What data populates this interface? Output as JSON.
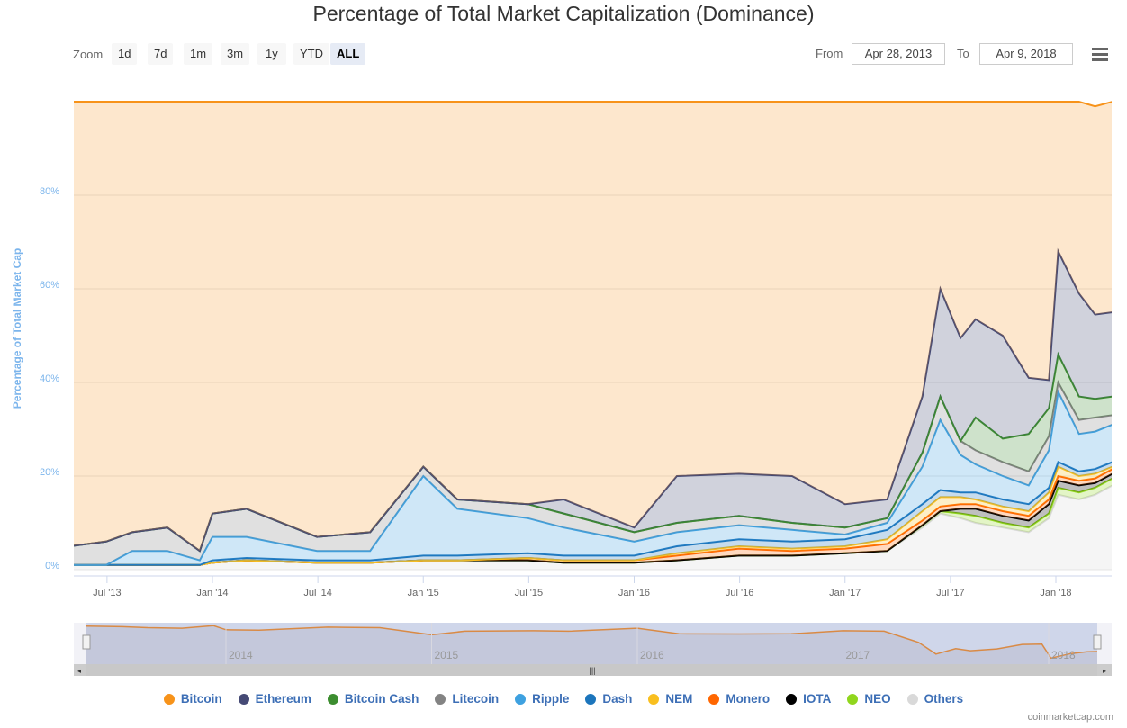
{
  "title": "Percentage of Total Market Capitalization (Dominance)",
  "zoom": {
    "label": "Zoom",
    "buttons": [
      "1d",
      "7d",
      "1m",
      "3m",
      "1y",
      "YTD",
      "ALL"
    ],
    "selected": "ALL"
  },
  "range": {
    "from_label": "From",
    "from": "Apr 28, 2013",
    "to_label": "To",
    "to": "Apr 9, 2018"
  },
  "credit": "coinmarketcap.com",
  "chart_data": {
    "type": "area",
    "stacking": "percent",
    "title": "Percentage of Total Market Capitalization (Dominance)",
    "ylabel": "Percentage of Total Market Cap",
    "ylim": [
      0,
      100
    ],
    "yticks": [
      "0%",
      "20%",
      "40%",
      "60%",
      "80%"
    ],
    "xticks": [
      "Jul '13",
      "Jan '14",
      "Jul '14",
      "Jan '15",
      "Jul '15",
      "Jan '16",
      "Jul '16",
      "Jan '17",
      "Jul '17",
      "Jan '18"
    ],
    "navigator_ticks": [
      "2014",
      "2015",
      "2016",
      "2017",
      "2018"
    ],
    "legend_position": "bottom",
    "x": [
      "2013-04-28",
      "2013-07-01",
      "2013-08-15",
      "2013-10-15",
      "2013-12-10",
      "2014-01-01",
      "2014-03-01",
      "2014-07-01",
      "2014-10-01",
      "2015-01-01",
      "2015-03-01",
      "2015-07-01",
      "2015-09-01",
      "2016-01-01",
      "2016-03-15",
      "2016-07-01",
      "2016-10-01",
      "2017-01-01",
      "2017-03-15",
      "2017-05-15",
      "2017-06-15",
      "2017-07-20",
      "2017-08-15",
      "2017-10-01",
      "2017-11-15",
      "2017-12-20",
      "2018-01-05",
      "2018-02-10",
      "2018-03-10",
      "2018-04-09"
    ],
    "series": [
      {
        "name": "Others",
        "color": "#d9d9d9",
        "values": [
          1,
          1,
          1,
          1,
          1,
          1.5,
          2,
          1.5,
          1.5,
          2,
          2,
          2,
          1.5,
          1.5,
          2,
          3,
          3,
          3.5,
          4,
          9,
          12,
          11,
          10,
          9,
          8,
          11,
          16,
          15,
          16,
          18
        ]
      },
      {
        "name": "NEO",
        "color": "#90d61d",
        "values": [
          0,
          0,
          0,
          0,
          0,
          0,
          0,
          0,
          0,
          0,
          0,
          0,
          0,
          0,
          0,
          0,
          0,
          0,
          0,
          0.5,
          0.5,
          1,
          1.5,
          1,
          1,
          1,
          1.5,
          1.5,
          1.5,
          1.5
        ]
      },
      {
        "name": "IOTA",
        "color": "#000000",
        "values": [
          0,
          0,
          0,
          0,
          0,
          0,
          0,
          0,
          0,
          0,
          0,
          0,
          0,
          0,
          0,
          0,
          0,
          0,
          0,
          0,
          0,
          1,
          1.5,
          1.5,
          1.5,
          2,
          1.5,
          1.5,
          1,
          1
        ]
      },
      {
        "name": "Monero",
        "color": "#ff6600",
        "values": [
          0,
          0,
          0,
          0,
          0,
          0,
          0,
          0,
          0,
          0,
          0,
          0.5,
          0.5,
          0.5,
          1,
          1.5,
          1,
          1,
          1.5,
          1,
          1,
          1,
          1,
          1,
          1,
          1,
          1,
          1,
          1,
          1
        ]
      },
      {
        "name": "NEM",
        "color": "#f9bf1f",
        "values": [
          0,
          0,
          0,
          0,
          0,
          0,
          0,
          0,
          0,
          0,
          0,
          0,
          0,
          0,
          0.5,
          0.5,
          0.5,
          0.5,
          1,
          2,
          2,
          1.5,
          1,
          1,
          1,
          1.5,
          2,
          1,
          1,
          0.5
        ]
      },
      {
        "name": "Dash",
        "color": "#1c75bc",
        "values": [
          0,
          0,
          0,
          0,
          0,
          0.5,
          0.5,
          0.5,
          0.5,
          1,
          1,
          1,
          1,
          1,
          1.5,
          1.5,
          1.5,
          1.5,
          2,
          1.5,
          1.5,
          1,
          1.5,
          1.5,
          1.5,
          1,
          1,
          1,
          1,
          1
        ]
      },
      {
        "name": "Ripple",
        "color": "#3ea1e0",
        "values": [
          0,
          0,
          3,
          3,
          1,
          5,
          4.5,
          2,
          2,
          17,
          10,
          7.5,
          6,
          3,
          3,
          3,
          2.5,
          1,
          1.5,
          8,
          15,
          8,
          6,
          5,
          4,
          8,
          15,
          8,
          8,
          8
        ]
      },
      {
        "name": "Litecoin",
        "color": "#838383",
        "values": [
          4,
          5,
          4,
          5,
          2,
          5,
          6,
          3,
          4,
          2,
          2,
          3,
          3,
          2,
          2,
          2,
          1.5,
          1.5,
          1,
          3,
          5,
          3,
          3,
          3,
          3,
          3,
          2,
          3,
          3,
          2
        ]
      },
      {
        "name": "Bitcoin Cash",
        "color": "#3c8d2f",
        "values": [
          0,
          0,
          0,
          0,
          0,
          0,
          0,
          0,
          0,
          0,
          0,
          0,
          0,
          0,
          0,
          0,
          0,
          0,
          0,
          0,
          0,
          0,
          7,
          5,
          8,
          6,
          6,
          5,
          4,
          4
        ]
      },
      {
        "name": "Ethereum",
        "color": "#454a75",
        "values": [
          0,
          0,
          0,
          0,
          0,
          0,
          0,
          0,
          0,
          0,
          0,
          0,
          3,
          1,
          10,
          9,
          10,
          5,
          4,
          12,
          23,
          22,
          21,
          22,
          12,
          6,
          22,
          22,
          18,
          18
        ]
      },
      {
        "name": "Bitcoin",
        "color": "#f7931a",
        "values": [
          95,
          94,
          92,
          91,
          96,
          88,
          87,
          93,
          92,
          78,
          85,
          86,
          85,
          91,
          80,
          79.5,
          80,
          86,
          85,
          63,
          40,
          50.5,
          46.5,
          50,
          59,
          59.5,
          32,
          41,
          44.5,
          45
        ]
      }
    ]
  }
}
